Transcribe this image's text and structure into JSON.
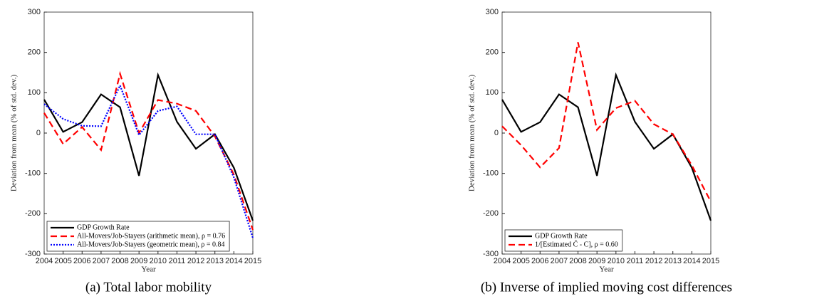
{
  "chart_data": [
    {
      "type": "line",
      "caption": "(a) Total labor mobility",
      "xlabel": "Year",
      "ylabel": "Deviation from mean (% of std. dev.)",
      "x": [
        2004,
        2005,
        2006,
        2007,
        2008,
        2009,
        2010,
        2011,
        2012,
        2013,
        2014,
        2015
      ],
      "xlim": [
        2004,
        2015
      ],
      "xticks": [
        2004,
        2005,
        2006,
        2007,
        2008,
        2009,
        2010,
        2011,
        2012,
        2013,
        2014,
        2015
      ],
      "ylim": [
        -300,
        300
      ],
      "yticks": [
        -300,
        -200,
        -100,
        0,
        100,
        200,
        300
      ],
      "legend": "lower left",
      "series": [
        {
          "name": "GDP Growth Rate",
          "color": "#000000",
          "style": "solid",
          "values": [
            83,
            3,
            27,
            96,
            64,
            -106,
            144,
            28,
            -39,
            -3,
            -86,
            -217
          ]
        },
        {
          "name": "All-Movers/Job-Stayers (arithmetic mean), ρ = 0.76",
          "color": "#ff0000",
          "style": "dashed",
          "values": [
            50,
            -27,
            15,
            -42,
            147,
            0,
            82,
            73,
            55,
            -8,
            -103,
            -240
          ]
        },
        {
          "name": "All-Movers/Job-Stayers (geometric mean), ρ = 0.84",
          "color": "#0000ff",
          "style": "dotted",
          "values": [
            72,
            35,
            18,
            17,
            118,
            -5,
            55,
            66,
            -3,
            -3,
            -110,
            -260
          ]
        }
      ]
    },
    {
      "type": "line",
      "caption": "(b) Inverse of implied moving cost differences",
      "xlabel": "Year",
      "ylabel": "Deviation from mean (% of std. dev.)",
      "x": [
        2004,
        2005,
        2006,
        2007,
        2008,
        2009,
        2010,
        2011,
        2012,
        2013,
        2014,
        2015
      ],
      "xlim": [
        2004,
        2015
      ],
      "xticks": [
        2004,
        2005,
        2006,
        2007,
        2008,
        2009,
        2010,
        2011,
        2012,
        2013,
        2014,
        2015
      ],
      "ylim": [
        -300,
        300
      ],
      "yticks": [
        -300,
        -200,
        -100,
        0,
        100,
        200,
        300
      ],
      "legend": "lower left",
      "series": [
        {
          "name": "GDP Growth Rate",
          "color": "#000000",
          "style": "solid",
          "values": [
            83,
            3,
            27,
            96,
            64,
            -106,
            144,
            28,
            -39,
            -3,
            -86,
            -217
          ]
        },
        {
          "name": "1/[Estimated C̃ - C], ρ = 0.60",
          "color": "#ff0000",
          "style": "dashed",
          "values": [
            17,
            -30,
            -85,
            -37,
            225,
            8,
            62,
            80,
            22,
            -3,
            -80,
            -170
          ]
        }
      ]
    }
  ]
}
